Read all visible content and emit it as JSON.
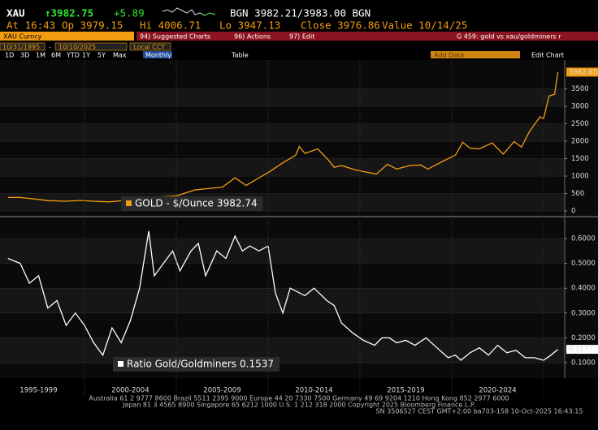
{
  "header": {
    "ticker": "XAU",
    "last": "↑3982.75",
    "change": "+5.89",
    "bid_ask": "BGN 3982.21/3983.00 BGN",
    "at": "At 16:43",
    "open": "Op 3979.15",
    "high": "Hi 4006.71",
    "low": "Lo 3947.13",
    "close": "Close 3976.86",
    "value_date": "Value 10/14/25"
  },
  "security": "XAU Curncy",
  "menu": [
    "94) Suggested Charts",
    "96) Actions",
    "97) Edit"
  ],
  "chart_name": "G 459: gold vs xau/goldminers r",
  "date_start": "10/31/1995",
  "date_end": "10/10/2025",
  "currency": "Local CCY",
  "periods": [
    "1D",
    "3D",
    "1M",
    "6M",
    "YTD",
    "1Y",
    "5Y",
    "Max"
  ],
  "frequency": "Monthly",
  "view": "Table",
  "add_data": "Add Data",
  "edit_chart": "Edit Chart",
  "chart_data": [
    {
      "type": "line",
      "xlim": [
        1995.4,
        2026.15
      ],
      "ylim": [
        -140,
        4330
      ],
      "yticks": [
        0,
        500,
        1000,
        1500,
        2000,
        2500,
        3000,
        3500
      ],
      "grid": true,
      "x": [
        1995.83,
        1996.5,
        1997.5,
        1998,
        1999,
        1999.75,
        2000.5,
        2001.3,
        2002,
        2003,
        2004,
        2005,
        2006,
        2006.5,
        2007.5,
        2008.2,
        2008.8,
        2009.5,
        2010,
        2010.8,
        2011.5,
        2011.7,
        2012,
        2012.7,
        2013.3,
        2013.6,
        2014,
        2014.8,
        2015.9,
        2016.5,
        2017,
        2017.7,
        2018.3,
        2018.7,
        2019.5,
        2019.8,
        2020.2,
        2020.6,
        2021,
        2021.5,
        2022.2,
        2022.8,
        2023.4,
        2023.8,
        2024.2,
        2024.8,
        2025,
        2025.3,
        2025.6,
        2025.78
      ],
      "series": [
        {
          "name": "GOLD - $/Ounce",
          "color": "#f39c12",
          "legend_value": 3982.74,
          "values": [
            385,
            385,
            330,
            295,
            280,
            300,
            280,
            260,
            290,
            350,
            400,
            430,
            600,
            630,
            680,
            950,
            730,
            950,
            1100,
            1380,
            1600,
            1850,
            1650,
            1780,
            1450,
            1250,
            1300,
            1170,
            1060,
            1340,
            1200,
            1300,
            1320,
            1200,
            1420,
            1500,
            1600,
            1970,
            1800,
            1780,
            1950,
            1630,
            1990,
            1830,
            2250,
            2700,
            2650,
            3300,
            3350,
            3982.65
          ]
        }
      ]
    },
    {
      "type": "line",
      "xlim": [
        1995.4,
        2026.15
      ],
      "ylim": [
        0.038,
        0.685
      ],
      "yticks": [
        {
          "value": 0.1,
          "label": "0.1000"
        },
        {
          "value": 0.2,
          "label": "0.2000"
        },
        {
          "value": 0.3,
          "label": "0.3000"
        },
        {
          "value": 0.4,
          "label": "0.4000"
        },
        {
          "value": 0.5,
          "label": "0.5000"
        },
        {
          "value": 0.6,
          "label": "0.6000"
        }
      ],
      "xticks": [
        {
          "value": 1997.5,
          "label": "1995-1999"
        },
        {
          "value": 2002.5,
          "label": "2000-2004"
        },
        {
          "value": 2007.5,
          "label": "2005-2009"
        },
        {
          "value": 2012.5,
          "label": "2010-2014"
        },
        {
          "value": 2017.5,
          "label": "2015-2019"
        },
        {
          "value": 2022.5,
          "label": "2020-2024"
        }
      ],
      "grid": true,
      "x": [
        1995.83,
        1996.5,
        1997,
        1997.5,
        1998,
        1998.5,
        1999,
        1999.5,
        2000,
        2000.5,
        2001,
        2001.5,
        2002,
        2002.5,
        2003,
        2003.5,
        2003.8,
        2004.3,
        2004.8,
        2005.2,
        2005.8,
        2006.2,
        2006.6,
        2007.2,
        2007.7,
        2008.2,
        2008.6,
        2009,
        2009.5,
        2010,
        2010.4,
        2010.8,
        2011.2,
        2012,
        2012.5,
        2013.2,
        2013.6,
        2014,
        2014.6,
        2015.2,
        2015.8,
        2016.2,
        2016.6,
        2017,
        2017.5,
        2018,
        2018.6,
        2019.2,
        2019.8,
        2020.2,
        2020.5,
        2021,
        2021.5,
        2022,
        2022.5,
        2023,
        2023.5,
        2024,
        2024.5,
        2025,
        2025.4,
        2025.78
      ],
      "series": [
        {
          "name": "Ratio Gold/Goldminers",
          "color": "#ffffff",
          "legend_value": 0.1537,
          "values": [
            0.52,
            0.5,
            0.42,
            0.45,
            0.32,
            0.35,
            0.25,
            0.3,
            0.25,
            0.18,
            0.13,
            0.24,
            0.18,
            0.27,
            0.4,
            0.63,
            0.45,
            0.5,
            0.55,
            0.47,
            0.55,
            0.58,
            0.45,
            0.55,
            0.52,
            0.61,
            0.55,
            0.57,
            0.55,
            0.57,
            0.38,
            0.3,
            0.4,
            0.37,
            0.4,
            0.35,
            0.33,
            0.26,
            0.22,
            0.19,
            0.17,
            0.2,
            0.2,
            0.18,
            0.19,
            0.17,
            0.2,
            0.16,
            0.12,
            0.13,
            0.11,
            0.14,
            0.16,
            0.13,
            0.17,
            0.14,
            0.15,
            0.12,
            0.12,
            0.11,
            0.13,
            0.1537
          ]
        }
      ]
    }
  ],
  "footer": [
    "Australia 61 2 9777 8600 Brazil 5511 2395 9000 Europe 44 20 7330 7500 Germany 49 69 9204 1210 Hong Kong 852 2977 6000",
    "Japan 81 3 4565 8900    Singapore 65 6212 1000    U.S. 1 212 318 2000    Copyright 2025 Bloomberg Finance L.P.",
    "SN 3506527 CEST GMT+2:00 ba703-158 10-Oct-2025 16:43:15"
  ]
}
